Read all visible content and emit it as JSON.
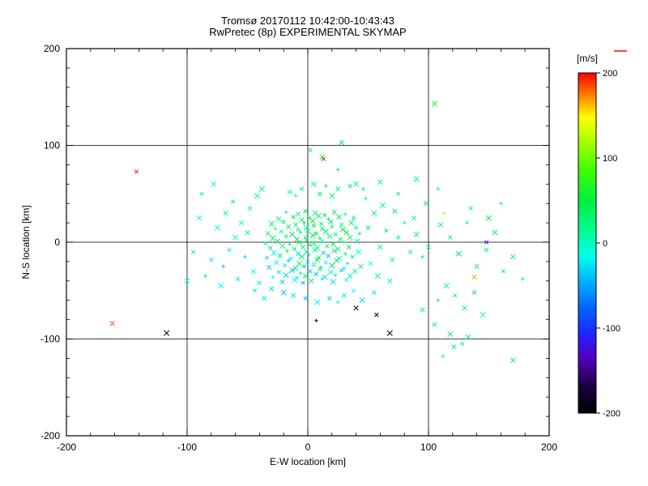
{
  "chart_data": {
    "type": "scatter",
    "title": "Tromsø 20170112 10:42:00-10:43:43",
    "subtitle": "RwPretec (8p) EXPERIMENTAL SKYMAP",
    "xlabel": "E-W location [km]",
    "ylabel": "N-S location [km]",
    "xlim": [
      -200,
      200
    ],
    "ylim": [
      -200,
      200
    ],
    "xticks": [
      -200,
      -100,
      0,
      100,
      200
    ],
    "yticks": [
      -200,
      -100,
      0,
      100,
      200
    ],
    "minor_tick_step": 20,
    "grid_lines": [
      -100,
      0,
      100
    ],
    "grid": "on",
    "marker": "x",
    "colorbar": {
      "label": "[m/s]",
      "label_color": "#ff0000",
      "min": -200,
      "max": 200,
      "ticks": [
        200,
        100,
        0,
        -100,
        -200
      ]
    },
    "colormap_stops": [
      [
        0.0,
        "#000000"
      ],
      [
        0.08,
        "#1a0040"
      ],
      [
        0.16,
        "#5500bb"
      ],
      [
        0.23,
        "#2222ff"
      ],
      [
        0.31,
        "#0066ff"
      ],
      [
        0.39,
        "#00b4ff"
      ],
      [
        0.46,
        "#00ffee"
      ],
      [
        0.53,
        "#00ff99"
      ],
      [
        0.62,
        "#00ee44"
      ],
      [
        0.72,
        "#44ff00"
      ],
      [
        0.8,
        "#aaff00"
      ],
      [
        0.87,
        "#ffff00"
      ],
      [
        0.93,
        "#ff8800"
      ],
      [
        1.0,
        "#ff0000"
      ]
    ],
    "points": [
      [
        -18,
        31,
        35
      ],
      [
        -8,
        29,
        20
      ],
      [
        -2,
        32,
        48
      ],
      [
        6,
        30,
        15
      ],
      [
        14,
        28,
        52
      ],
      [
        22,
        31,
        30
      ],
      [
        31,
        29,
        8
      ],
      [
        -24,
        24,
        12
      ],
      [
        -12,
        26,
        40
      ],
      [
        -5,
        23,
        25
      ],
      [
        1,
        25,
        55
      ],
      [
        9,
        27,
        33
      ],
      [
        17,
        24,
        18
      ],
      [
        26,
        26,
        45
      ],
      [
        38,
        25,
        22
      ],
      [
        -30,
        19,
        28
      ],
      [
        -20,
        21,
        50
      ],
      [
        -10,
        18,
        14
      ],
      [
        -3,
        20,
        38
      ],
      [
        4,
        22,
        60
      ],
      [
        11,
        19,
        26
      ],
      [
        19,
        21,
        42
      ],
      [
        28,
        18,
        10
      ],
      [
        36,
        20,
        34
      ],
      [
        -27,
        14,
        18
      ],
      [
        -16,
        16,
        45
      ],
      [
        -8,
        13,
        30
      ],
      [
        -1,
        15,
        12
      ],
      [
        5,
        17,
        50
      ],
      [
        12,
        14,
        24
      ],
      [
        20,
        16,
        38
      ],
      [
        29,
        13,
        56
      ],
      [
        40,
        15,
        16
      ],
      [
        -33,
        9,
        25
      ],
      [
        -22,
        11,
        8
      ],
      [
        -13,
        8,
        42
      ],
      [
        -6,
        10,
        28
      ],
      [
        0,
        12,
        15
      ],
      [
        7,
        9,
        48
      ],
      [
        15,
        11,
        35
      ],
      [
        23,
        8,
        20
      ],
      [
        32,
        10,
        52
      ],
      [
        43,
        9,
        30
      ],
      [
        -29,
        4,
        38
      ],
      [
        -18,
        6,
        22
      ],
      [
        -9,
        3,
        55
      ],
      [
        -2,
        5,
        10
      ],
      [
        4,
        7,
        44
      ],
      [
        10,
        4,
        28
      ],
      [
        18,
        6,
        14
      ],
      [
        27,
        3,
        40
      ],
      [
        35,
        5,
        26
      ],
      [
        -35,
        -1,
        20
      ],
      [
        -25,
        1,
        46
      ],
      [
        -15,
        -2,
        12
      ],
      [
        -7,
        0,
        32
      ],
      [
        -1,
        2,
        58
      ],
      [
        5,
        -1,
        25
      ],
      [
        12,
        1,
        8
      ],
      [
        21,
        -2,
        36
      ],
      [
        30,
        0,
        48
      ],
      [
        41,
        1,
        18
      ],
      [
        -31,
        -6,
        30
      ],
      [
        -21,
        -4,
        16
      ],
      [
        -11,
        -7,
        44
      ],
      [
        -4,
        -5,
        24
      ],
      [
        2,
        -3,
        52
      ],
      [
        8,
        -6,
        12
      ],
      [
        16,
        -4,
        38
      ],
      [
        25,
        -7,
        28
      ],
      [
        34,
        -5,
        50
      ],
      [
        -28,
        -11,
        -15
      ],
      [
        -17,
        -9,
        40
      ],
      [
        -8,
        -12,
        -25
      ],
      [
        -1,
        -10,
        30
      ],
      [
        6,
        -8,
        18
      ],
      [
        13,
        -11,
        -35
      ],
      [
        22,
        -9,
        46
      ],
      [
        31,
        -12,
        22
      ],
      [
        42,
        -10,
        -10
      ],
      [
        -34,
        -16,
        -30
      ],
      [
        -23,
        -14,
        25
      ],
      [
        -14,
        -17,
        -12
      ],
      [
        -5,
        -15,
        42
      ],
      [
        1,
        -13,
        -22
      ],
      [
        9,
        -16,
        35
      ],
      [
        17,
        -14,
        -40
      ],
      [
        26,
        -17,
        15
      ],
      [
        37,
        -15,
        28
      ],
      [
        -26,
        -21,
        -18
      ],
      [
        -16,
        -19,
        -38
      ],
      [
        -7,
        -22,
        20
      ],
      [
        0,
        -20,
        -28
      ],
      [
        8,
        -18,
        45
      ],
      [
        15,
        -21,
        -15
      ],
      [
        24,
        -19,
        32
      ],
      [
        33,
        -22,
        -25
      ],
      [
        -32,
        -26,
        -35
      ],
      [
        -19,
        -24,
        -20
      ],
      [
        -10,
        -27,
        28
      ],
      [
        -3,
        -25,
        -45
      ],
      [
        5,
        -23,
        15
      ],
      [
        11,
        -26,
        -30
      ],
      [
        20,
        -24,
        40
      ],
      [
        30,
        -27,
        -12
      ],
      [
        44,
        -25,
        25
      ],
      [
        -24,
        -31,
        -25
      ],
      [
        -13,
        -29,
        -42
      ],
      [
        -6,
        -32,
        18
      ],
      [
        2,
        -30,
        -32
      ],
      [
        10,
        -28,
        25
      ],
      [
        19,
        -31,
        -18
      ],
      [
        28,
        -29,
        -38
      ],
      [
        39,
        -30,
        20
      ],
      [
        -29,
        -36,
        -15
      ],
      [
        -18,
        -34,
        -35
      ],
      [
        -9,
        -37,
        -22
      ],
      [
        -2,
        -35,
        30
      ],
      [
        7,
        -33,
        -40
      ],
      [
        14,
        -36,
        -28
      ],
      [
        23,
        -34,
        12
      ],
      [
        35,
        -35,
        -20
      ],
      [
        -21,
        -41,
        -32
      ],
      [
        -11,
        -39,
        -18
      ],
      [
        -4,
        -42,
        -42
      ],
      [
        3,
        -40,
        22
      ],
      [
        12,
        -38,
        -25
      ],
      [
        21,
        -41,
        -35
      ],
      [
        32,
        -39,
        -15
      ],
      [
        -55,
        20,
        -10
      ],
      [
        -48,
        35,
        15
      ],
      [
        -60,
        5,
        -20
      ],
      [
        -52,
        -15,
        -30
      ],
      [
        -45,
        -30,
        -18
      ],
      [
        -58,
        -38,
        -25
      ],
      [
        -42,
        48,
        20
      ],
      [
        -65,
        -8,
        -12
      ],
      [
        -50,
        10,
        8
      ],
      [
        -70,
        -25,
        -35
      ],
      [
        -38,
        55,
        30
      ],
      [
        -44,
        -50,
        -28
      ],
      [
        -36,
        -58,
        -20
      ],
      [
        50,
        15,
        35
      ],
      [
        55,
        30,
        20
      ],
      [
        48,
        45,
        15
      ],
      [
        60,
        -5,
        25
      ],
      [
        52,
        -22,
        -15
      ],
      [
        58,
        -35,
        10
      ],
      [
        65,
        12,
        30
      ],
      [
        70,
        -18,
        18
      ],
      [
        46,
        55,
        25
      ],
      [
        62,
        38,
        12
      ],
      [
        75,
        5,
        28
      ],
      [
        68,
        -40,
        -20
      ],
      [
        55,
        -52,
        -25
      ],
      [
        45,
        -60,
        -30
      ],
      [
        80,
        20,
        15
      ],
      [
        72,
        32,
        35
      ],
      [
        85,
        -10,
        20
      ],
      [
        40,
        60,
        18
      ],
      [
        35,
        58,
        40
      ],
      [
        25,
        55,
        22
      ],
      [
        15,
        58,
        35
      ],
      [
        5,
        60,
        15
      ],
      [
        -5,
        55,
        28
      ],
      [
        -15,
        52,
        18
      ],
      [
        10,
        50,
        45
      ],
      [
        20,
        48,
        30
      ],
      [
        -10,
        48,
        12
      ],
      [
        30,
        -55,
        -22
      ],
      [
        18,
        -58,
        -30
      ],
      [
        8,
        -62,
        -15
      ],
      [
        -2,
        -58,
        -35
      ],
      [
        -12,
        -55,
        -25
      ],
      [
        25,
        -62,
        -18
      ],
      [
        -20,
        -52,
        -40
      ],
      [
        38,
        -50,
        -12
      ],
      [
        -30,
        -48,
        -28
      ],
      [
        -40,
        -42,
        -20
      ],
      [
        90,
        8,
        25
      ],
      [
        95,
        -15,
        30
      ],
      [
        88,
        25,
        15
      ],
      [
        100,
        -5,
        20
      ],
      [
        -75,
        15,
        -15
      ],
      [
        -80,
        -18,
        -22
      ],
      [
        -68,
        30,
        10
      ],
      [
        -85,
        -35,
        -30
      ],
      [
        -72,
        -45,
        -18
      ],
      [
        -62,
        42,
        25
      ],
      [
        110,
        18,
        30
      ],
      [
        118,
        5,
        22
      ],
      [
        125,
        -12,
        35
      ],
      [
        132,
        20,
        15
      ],
      [
        140,
        -25,
        28
      ],
      [
        148,
        -8,
        20
      ],
      [
        155,
        10,
        25
      ],
      [
        162,
        -30,
        18
      ],
      [
        170,
        -15,
        30
      ],
      [
        178,
        -38,
        22
      ],
      [
        115,
        -45,
        15
      ],
      [
        122,
        -55,
        28
      ],
      [
        130,
        -68,
        20
      ],
      [
        138,
        -52,
        32
      ],
      [
        145,
        -75,
        18
      ],
      [
        108,
        -60,
        25
      ],
      [
        95,
        -70,
        15
      ],
      [
        105,
        -85,
        22
      ],
      [
        118,
        -95,
        28
      ],
      [
        128,
        -105,
        20
      ],
      [
        98,
        40,
        30
      ],
      [
        108,
        55,
        18
      ],
      [
        90,
        65,
        25
      ],
      [
        75,
        50,
        20
      ],
      [
        60,
        62,
        15
      ],
      [
        135,
        35,
        25
      ],
      [
        150,
        25,
        50
      ],
      [
        160,
        40,
        20
      ],
      [
        -90,
        25,
        -20
      ],
      [
        -95,
        -10,
        -25
      ],
      [
        -100,
        -40,
        -15
      ],
      [
        -88,
        50,
        18
      ],
      [
        -78,
        60,
        -12
      ],
      [
        25,
        75,
        30
      ],
      [
        12,
        88,
        20
      ],
      [
        -142,
        73,
        195
      ],
      [
        -162,
        -84,
        185
      ],
      [
        13,
        86,
        190
      ],
      [
        -117,
        -94,
        -195
      ],
      [
        7,
        -81,
        -185
      ],
      [
        40,
        -68,
        -190
      ],
      [
        57,
        -75,
        -180
      ],
      [
        68,
        -94,
        -195
      ],
      [
        148,
        0,
        -115
      ],
      [
        138,
        -36,
        165
      ],
      [
        113,
        30,
        125
      ],
      [
        105,
        143,
        55
      ],
      [
        2,
        95,
        25
      ],
      [
        28,
        103,
        40
      ],
      [
        121,
        -108,
        25
      ],
      [
        133,
        -98,
        18
      ],
      [
        112,
        -118,
        22
      ],
      [
        170,
        -122,
        20
      ]
    ]
  }
}
